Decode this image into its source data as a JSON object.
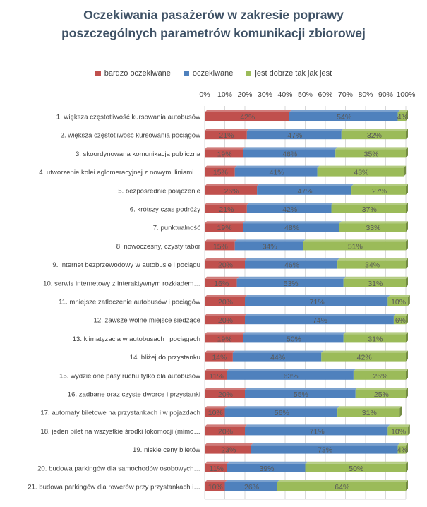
{
  "chart_data": {
    "type": "bar",
    "orientation": "horizontal",
    "stacked": "percent",
    "title_lines": [
      "Oczekiwania pasażerów w zakresie poprawy",
      "poszczególnych parametrów komunikacji  zbiorowej"
    ],
    "xlim": [
      0,
      100
    ],
    "x_ticks": [
      "0%",
      "10%",
      "20%",
      "30%",
      "40%",
      "50%",
      "60%",
      "70%",
      "80%",
      "90%",
      "100%"
    ],
    "legend_position": "top",
    "categories": [
      "1. większa częstotliwość kursowania autobusów",
      "2. większa częstotliwość kursowania pociągów",
      "3. skoordynowana komunikacja publiczna",
      "4. utworzenie kolei aglomeracyjnej z nowymi liniami…",
      "5. bezpośrednie połączenie",
      "6. krótszy czas podróży",
      "7. punktualność",
      "8. nowoczesny, czysty tabor",
      "9. Internet bezprzewodowy w autobusie i pociągu",
      "10. serwis internetowy z interaktywnym rozkładem…",
      "11. mniejsze zatłoczenie autobusów i pociągów",
      "12. zawsze wolne miejsce siedzące",
      "13. klimatyzacja w autobusach i pociągach",
      "14. bliżej do przystanku",
      "15. wydzielone pasy ruchu tylko dla autobusów",
      "16. zadbane oraz czyste dworce i przystanki",
      "17. automaty biletowe na przystankach i w pojazdach",
      "18. jeden bilet na wszystkie środki lokomocji (mimo…",
      "19. niskie ceny biletów",
      "20. budowa parkingów dla samochodów osobowych…",
      "21. budowa parkingów dla rowerów przy przystankach i…"
    ],
    "series": [
      {
        "name": "bardzo oczekiwane",
        "color": "#c0504d",
        "values": [
          42,
          21,
          19,
          15,
          26,
          21,
          19,
          15,
          20,
          16,
          20,
          20,
          19,
          14,
          11,
          20,
          10,
          20,
          23,
          11,
          10
        ],
        "labels": [
          "42%",
          "21%",
          "19%",
          "15%",
          "26%",
          "21%",
          "19%",
          "15%",
          "20%",
          "16%",
          "20%",
          "20%",
          "19%",
          "14%",
          "11%",
          "20%",
          "10%",
          "20%",
          "23%",
          "11%",
          "10%"
        ]
      },
      {
        "name": "oczekiwane",
        "color": "#4f81bd",
        "values": [
          54,
          47,
          46,
          41,
          47,
          42,
          48,
          34,
          46,
          53,
          71,
          74,
          50,
          44,
          63,
          55,
          56,
          71,
          73,
          39,
          26
        ],
        "labels": [
          "54%",
          "47%",
          "46%",
          "41%",
          "47%",
          "42%",
          "48%",
          "34%",
          "46%",
          "53%",
          "71%",
          "74%",
          "50%",
          "44%",
          "63%",
          "55%",
          "56%",
          "71%",
          "73%",
          "39%",
          "26%"
        ]
      },
      {
        "name": "jest dobrze tak jak jest",
        "color": "#9bbb59",
        "values": [
          4,
          32,
          35,
          43,
          27,
          37,
          33,
          51,
          34,
          31,
          10,
          6,
          31,
          42,
          26,
          25,
          31,
          10,
          4,
          50,
          64
        ],
        "labels": [
          "4%",
          "32%",
          "35%",
          "43%",
          "27%",
          "37%",
          "33%",
          "51%",
          "34%",
          "31%",
          "10%",
          "6%",
          "31%",
          "42%",
          "26%",
          "25%",
          "31%",
          "10%",
          "4%",
          "50%",
          "64%"
        ]
      }
    ]
  }
}
